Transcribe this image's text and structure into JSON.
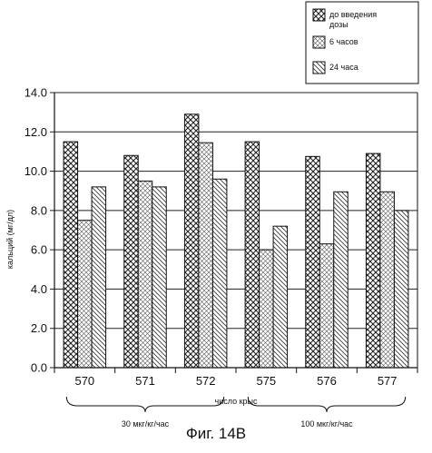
{
  "caption": "Фиг. 14В",
  "chart_data": {
    "type": "bar",
    "categories": [
      "570",
      "571",
      "572",
      "575",
      "576",
      "577"
    ],
    "series": [
      {
        "name": "до введения дозы",
        "values": [
          11.5,
          10.8,
          12.9,
          11.5,
          10.75,
          10.9
        ],
        "pattern": "crosshatch"
      },
      {
        "name": "6 часов",
        "values": [
          7.5,
          9.5,
          11.45,
          6.0,
          6.3,
          8.95
        ],
        "pattern": "fine-crosshatch"
      },
      {
        "name": "24 часа",
        "values": [
          9.2,
          9.2,
          9.6,
          7.2,
          8.95,
          8.0
        ],
        "pattern": "diagonal"
      }
    ],
    "title": "",
    "xlabel": "число крыс",
    "ylabel": "кальций (мг/дл)",
    "ylim": [
      0,
      14
    ],
    "yticks": [
      "0.0",
      "2.0",
      "4.0",
      "6.0",
      "8.0",
      "10.0",
      "12.0",
      "14.0"
    ],
    "grid": true,
    "legend_position": "top-right",
    "groups": [
      {
        "label": "30 мкг/кг/час",
        "categories": [
          "570",
          "571",
          "572"
        ]
      },
      {
        "label": "100 мкг/кг/час",
        "categories": [
          "575",
          "576",
          "577"
        ]
      }
    ]
  }
}
